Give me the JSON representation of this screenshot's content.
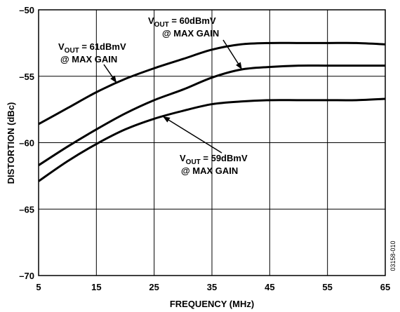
{
  "chart_data": {
    "type": "line",
    "xlabel": "FREQUENCY (MHz)",
    "ylabel": "DISTORTION (dBc)",
    "xlim": [
      5,
      65
    ],
    "ylim": [
      -70,
      -50
    ],
    "x_ticks": [
      "5",
      "15",
      "25",
      "35",
      "45",
      "55",
      "65"
    ],
    "y_ticks": [
      "–50",
      "–55",
      "–60",
      "–65",
      "–70"
    ],
    "grid": true,
    "series": [
      {
        "name": "61dBmV",
        "x": [
          5,
          10,
          15,
          20,
          25,
          30,
          35,
          40,
          45,
          50,
          55,
          60,
          65
        ],
        "values": [
          -58.6,
          -57.4,
          -56.2,
          -55.2,
          -54.4,
          -53.7,
          -53.0,
          -52.6,
          -52.5,
          -52.5,
          -52.5,
          -52.5,
          -52.6
        ]
      },
      {
        "name": "60dBmV",
        "x": [
          5,
          10,
          15,
          20,
          25,
          30,
          35,
          40,
          45,
          50,
          55,
          60,
          65
        ],
        "values": [
          -61.7,
          -60.3,
          -59.0,
          -57.8,
          -56.8,
          -56.0,
          -55.1,
          -54.5,
          -54.3,
          -54.2,
          -54.2,
          -54.2,
          -54.2
        ]
      },
      {
        "name": "59dBmV",
        "x": [
          5,
          10,
          15,
          20,
          25,
          30,
          35,
          40,
          45,
          50,
          55,
          60,
          65
        ],
        "values": [
          -62.9,
          -61.4,
          -60.1,
          -59.0,
          -58.2,
          -57.6,
          -57.1,
          -56.9,
          -56.8,
          -56.8,
          -56.8,
          -56.8,
          -56.7
        ]
      }
    ],
    "annotations": [
      {
        "main": "V",
        "sub": "OUT",
        "rest": " = 61dBmV",
        "line2": "@ MAX GAIN"
      },
      {
        "main": "V",
        "sub": "OUT",
        "rest": " = 60dBmV",
        "line2": "@ MAX GAIN"
      },
      {
        "main": "V",
        "sub": "OUT",
        "rest": " = 59dBmV",
        "line2": "@ MAX GAIN"
      }
    ],
    "figure_id": "03158-010"
  }
}
